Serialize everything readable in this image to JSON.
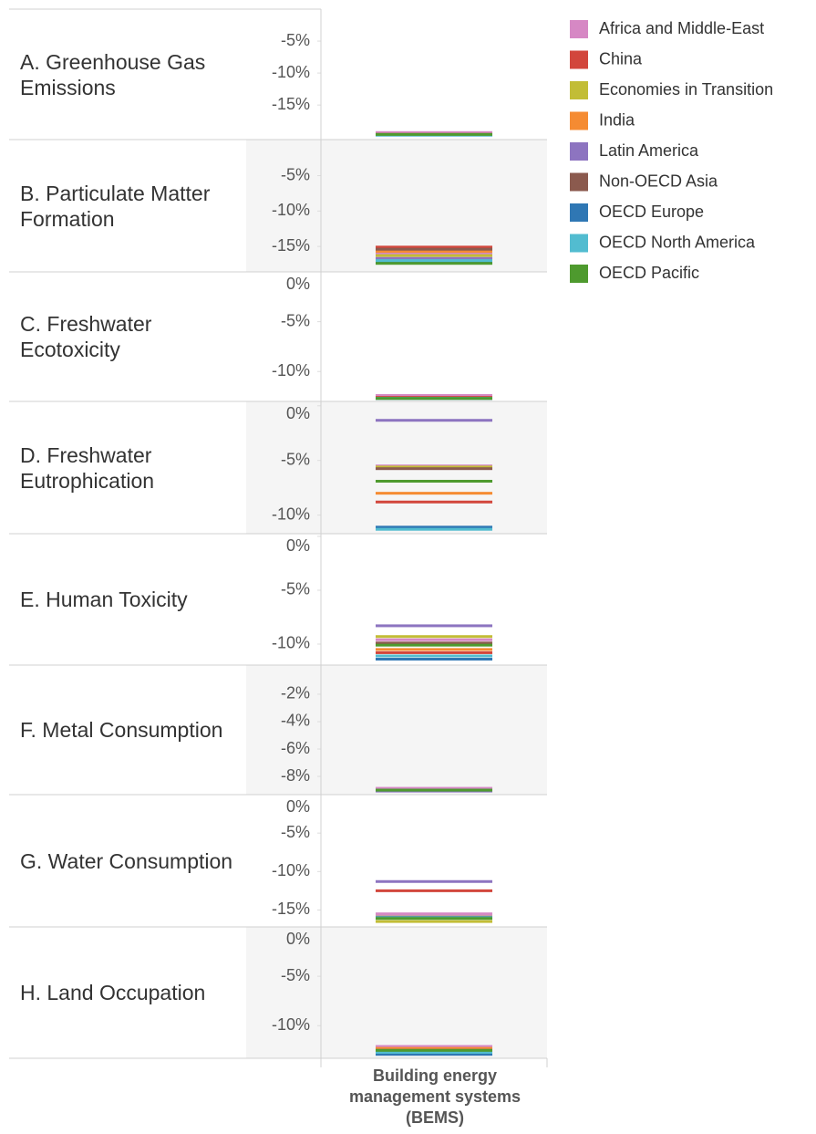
{
  "chart_data": {
    "type": "tick",
    "categories": [
      "Building energy management systems (BEMS)"
    ],
    "series": [
      {
        "name": "Africa and Middle-East",
        "color": "#d688c4"
      },
      {
        "name": "China",
        "color": "#d2463c"
      },
      {
        "name": "Economies in Transition",
        "color": "#c2bd36"
      },
      {
        "name": "India",
        "color": "#f58b32"
      },
      {
        "name": "Latin America",
        "color": "#8d74c0"
      },
      {
        "name": "Non-OECD Asia",
        "color": "#8b5a4e"
      },
      {
        "name": "OECD Europe",
        "color": "#2f77b4"
      },
      {
        "name": "OECD North America",
        "color": "#52bcd0"
      },
      {
        "name": "OECD Pacific",
        "color": "#4e9a2e"
      }
    ],
    "panels": [
      {
        "title": "A. Greenhouse Gas Emissions",
        "ylim": [
          -20.4,
          0
        ],
        "yticks": [
          {
            "value": -5,
            "label": "-5%"
          },
          {
            "value": -10,
            "label": "-10%"
          },
          {
            "value": -15,
            "label": "-15%"
          }
        ],
        "values": [
          -19.3,
          -19.6,
          -19.6,
          -19.6,
          -19.6,
          -19.6,
          -19.7,
          -19.7,
          -19.6
        ]
      },
      {
        "title": "B. Particulate Matter Formation",
        "ylim": [
          -18.6,
          0.1
        ],
        "yticks": [
          {
            "value": -5,
            "label": "-5%"
          },
          {
            "value": -10,
            "label": "-10%"
          },
          {
            "value": -15,
            "label": "-15%"
          }
        ],
        "values": [
          -16.0,
          -15.1,
          -16.3,
          -15.7,
          -16.7,
          -15.4,
          -17.2,
          -17.0,
          -17.4
        ]
      },
      {
        "title": "C. Freshwater Ecotoxicity",
        "ylim": [
          -13,
          0
        ],
        "yticks": [
          {
            "value": 0,
            "label": "0%"
          },
          {
            "value": -5,
            "label": "-5%"
          },
          {
            "value": -10,
            "label": "-10%"
          }
        ],
        "values": [
          -12.4,
          -12.6,
          -12.7,
          -12.7,
          -12.7,
          -12.7,
          -12.7,
          -12.7,
          -12.7
        ]
      },
      {
        "title": "D. Freshwater Eutrophication",
        "ylim": [
          -11.7,
          0.4
        ],
        "yticks": [
          {
            "value": 0,
            "label": "0%"
          },
          {
            "value": -5,
            "label": "-5%"
          },
          {
            "value": -10,
            "label": "-10%"
          }
        ],
        "values": [
          -5.5,
          -8.8,
          -5.6,
          -8.0,
          -1.33,
          -5.75,
          -11.1,
          -11.3,
          -6.9
        ]
      },
      {
        "title": "E. Human Toxicity",
        "ylim": [
          -11.95,
          0.25
        ],
        "yticks": [
          {
            "value": 0,
            "label": "0%"
          },
          {
            "value": -5,
            "label": "-5%"
          },
          {
            "value": -10,
            "label": "-10%"
          }
        ],
        "values": [
          -9.6,
          -10.8,
          -9.3,
          -10.5,
          -8.3,
          -9.9,
          -11.4,
          -11.1,
          -10.1
        ]
      },
      {
        "title": "F. Metal Consumption",
        "ylim": [
          -9.33,
          0.13
        ],
        "yticks": [
          {
            "value": -2,
            "label": "-2%"
          },
          {
            "value": -4,
            "label": "-4%"
          },
          {
            "value": -6,
            "label": "-6%"
          },
          {
            "value": -8,
            "label": "-8%"
          }
        ],
        "values": [
          -8.87,
          -9.0,
          -9.0,
          -9.0,
          -9.07,
          -9.0,
          -9.0,
          -9.0,
          -9.0
        ]
      },
      {
        "title": "G. Water Consumption",
        "ylim": [
          -17.2,
          0
        ],
        "yticks": [
          {
            "value": 0,
            "label": "0%"
          },
          {
            "value": -5,
            "label": "-5%"
          },
          {
            "value": -10,
            "label": "-10%"
          },
          {
            "value": -15,
            "label": "-15%"
          }
        ],
        "values": [
          -15.5,
          -12.5,
          -16.5,
          -16.0,
          -11.3,
          -15.9,
          -16.0,
          -16.0,
          -16.1
        ]
      },
      {
        "title": "H. Land Occupation",
        "ylim": [
          -13.3,
          0
        ],
        "yticks": [
          {
            "value": 0,
            "label": "0%"
          },
          {
            "value": -5,
            "label": "-5%"
          },
          {
            "value": -10,
            "label": "-10%"
          }
        ],
        "values": [
          -12.1,
          -12.4,
          -12.5,
          -12.3,
          -12.5,
          -12.5,
          -12.9,
          -12.7,
          -12.5
        ]
      }
    ]
  }
}
